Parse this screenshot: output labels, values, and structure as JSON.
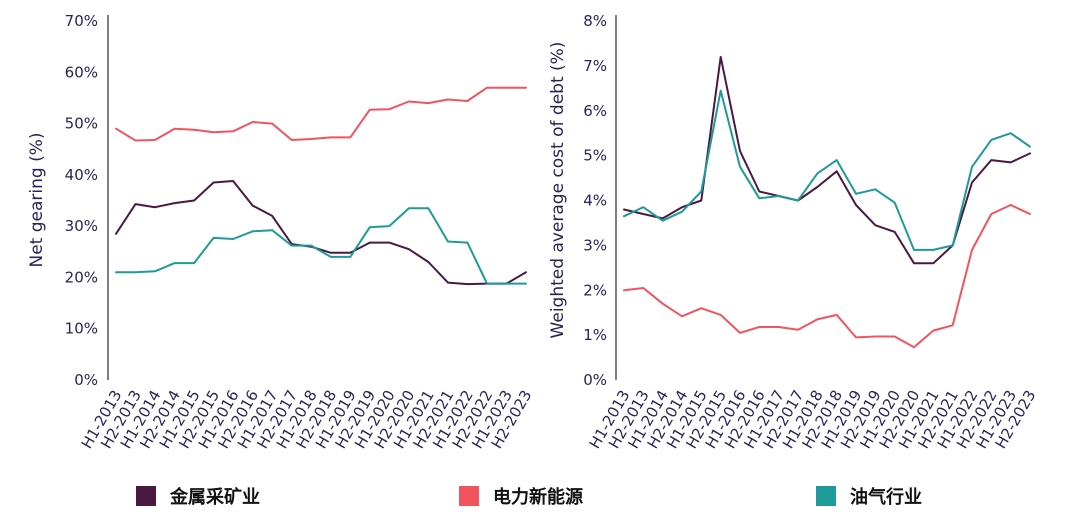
{
  "colors": {
    "axis": "#2b2358",
    "metals_mining": "#4a1942",
    "power_renewables": "#f0545e",
    "oil_gas": "#1e9a9a"
  },
  "legend": [
    {
      "label": "金属采矿业",
      "color": "#4a1942"
    },
    {
      "label": "电力新能源",
      "color": "#f0545e"
    },
    {
      "label": "油气行业",
      "color": "#1e9a9a"
    }
  ],
  "chart_data": [
    {
      "type": "line",
      "ylabel": "Net gearing (%)",
      "ylim": [
        0,
        70
      ],
      "yticks": [
        "0%",
        "10%",
        "20%",
        "30%",
        "40%",
        "50%",
        "60%",
        "70%"
      ],
      "categories": [
        "H1-2013",
        "H2-2013",
        "H1-2014",
        "H2-2014",
        "H1-2015",
        "H2-2015",
        "H1-2016",
        "H2-2016",
        "H1-2017",
        "H2-2017",
        "H1-2018",
        "H2-2018",
        "H1-2019",
        "H2-2019",
        "H1-2020",
        "H2-2020",
        "H1-2021",
        "H2-2021",
        "H1-2022",
        "H2-2022",
        "H1-2023",
        "H2-2023"
      ],
      "grid": false,
      "series": [
        {
          "name": "金属采矿业",
          "color": "#4a1942",
          "values": [
            28.5,
            34.3,
            33.7,
            34.5,
            35.0,
            38.5,
            38.8,
            34.0,
            32.0,
            26.5,
            26.0,
            24.8,
            24.8,
            26.8,
            26.8,
            25.5,
            23.0,
            19.0,
            18.7,
            18.8,
            18.8,
            21.0
          ]
        },
        {
          "name": "电力新能源",
          "color": "#f0545e",
          "values": [
            49.0,
            46.7,
            46.8,
            49.0,
            48.8,
            48.3,
            48.5,
            50.3,
            50.0,
            46.8,
            47.0,
            47.3,
            47.3,
            52.7,
            52.8,
            54.3,
            54.0,
            54.7,
            54.4,
            57.0,
            57.0,
            57.0
          ]
        },
        {
          "name": "油气行业",
          "color": "#1e9a9a",
          "values": [
            21.0,
            21.0,
            21.2,
            22.8,
            22.8,
            27.7,
            27.5,
            29.0,
            29.2,
            26.2,
            26.2,
            24.0,
            24.0,
            29.8,
            30.0,
            33.5,
            33.5,
            27.0,
            26.8,
            18.8,
            18.8,
            18.8
          ]
        }
      ]
    },
    {
      "type": "line",
      "ylabel": "Weighted average cost of debt (%)",
      "ylim": [
        0,
        8
      ],
      "yticks": [
        "0%",
        "1%",
        "2%",
        "3%",
        "4%",
        "5%",
        "6%",
        "7%",
        "8%"
      ],
      "categories": [
        "H1-2013",
        "H2-2013",
        "H1-2014",
        "H2-2014",
        "H1-2015",
        "H2-2015",
        "H1-2016",
        "H2-2016",
        "H1-2017",
        "H2-2017",
        "H1-2018",
        "H2-2018",
        "H1-2019",
        "H2-2019",
        "H1-2020",
        "H2-2020",
        "H1-2021",
        "H2-2021",
        "H1-2022",
        "H2-2022",
        "H1-2023",
        "H2-2023"
      ],
      "grid": false,
      "series": [
        {
          "name": "金属采矿业",
          "color": "#4a1942",
          "values": [
            3.8,
            3.7,
            3.6,
            3.85,
            4.0,
            7.2,
            5.1,
            4.2,
            4.1,
            4.0,
            4.3,
            4.65,
            3.9,
            3.45,
            3.3,
            2.6,
            2.6,
            3.0,
            4.4,
            4.9,
            4.85,
            5.05
          ]
        },
        {
          "name": "电力新能源",
          "color": "#f0545e",
          "values": [
            2.0,
            2.05,
            1.7,
            1.42,
            1.6,
            1.45,
            1.05,
            1.18,
            1.18,
            1.12,
            1.35,
            1.45,
            0.95,
            0.97,
            0.97,
            0.73,
            1.1,
            1.22,
            2.9,
            3.7,
            3.9,
            3.7
          ]
        },
        {
          "name": "油气行业",
          "color": "#1e9a9a",
          "values": [
            3.65,
            3.85,
            3.55,
            3.75,
            4.2,
            6.45,
            4.75,
            4.05,
            4.1,
            4.0,
            4.6,
            4.9,
            4.15,
            4.25,
            3.95,
            2.9,
            2.9,
            3.0,
            4.75,
            5.35,
            5.5,
            5.2
          ]
        }
      ]
    }
  ]
}
